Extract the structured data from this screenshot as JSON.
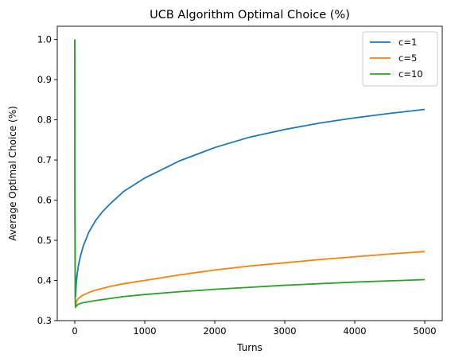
{
  "chart_data": {
    "type": "line",
    "title": "UCB Algorithm Optimal Choice (%)",
    "xlabel": "Turns",
    "ylabel": "Average Optimal Choice (%)",
    "xlim": [
      -250,
      5250
    ],
    "ylim": [
      0.3,
      1.033
    ],
    "xticks": [
      0,
      1000,
      2000,
      3000,
      4000,
      5000
    ],
    "xtick_labels": [
      "0",
      "1000",
      "2000",
      "3000",
      "4000",
      "5000"
    ],
    "yticks": [
      0.3,
      0.4,
      0.5,
      0.6,
      0.7,
      0.8,
      0.9,
      1.0
    ],
    "ytick_labels": [
      "0.3",
      "0.4",
      "0.5",
      "0.6",
      "0.7",
      "0.8",
      "0.9",
      "1.0"
    ],
    "grid": false,
    "legend_position": "top-right",
    "series": [
      {
        "name": "c=1",
        "color": "#1f77b4",
        "x": [
          1,
          3,
          5,
          8,
          12,
          20,
          30,
          50,
          80,
          120,
          200,
          300,
          400,
          500,
          700,
          1000,
          1500,
          2000,
          2500,
          3000,
          3500,
          4000,
          4500,
          5000
        ],
        "y": [
          1.0,
          0.6,
          0.5,
          0.38,
          0.36,
          0.39,
          0.41,
          0.435,
          0.46,
          0.485,
          0.52,
          0.55,
          0.572,
          0.59,
          0.622,
          0.655,
          0.698,
          0.731,
          0.757,
          0.776,
          0.792,
          0.805,
          0.816,
          0.826
        ]
      },
      {
        "name": "c=5",
        "color": "#ff7f0e",
        "x": [
          1,
          3,
          5,
          8,
          12,
          20,
          30,
          50,
          100,
          200,
          300,
          500,
          700,
          1000,
          1500,
          2000,
          2500,
          3000,
          3500,
          4000,
          4500,
          5000
        ],
        "y": [
          1.0,
          0.5,
          0.4,
          0.34,
          0.335,
          0.345,
          0.35,
          0.355,
          0.362,
          0.37,
          0.376,
          0.385,
          0.392,
          0.4,
          0.414,
          0.426,
          0.436,
          0.444,
          0.452,
          0.459,
          0.466,
          0.472
        ]
      },
      {
        "name": "c=10",
        "color": "#2ca02c",
        "x": [
          1,
          3,
          5,
          8,
          12,
          20,
          30,
          50,
          100,
          200,
          300,
          500,
          700,
          1000,
          1500,
          2000,
          2500,
          3000,
          3500,
          4000,
          4500,
          5000
        ],
        "y": [
          1.0,
          0.55,
          0.4,
          0.34,
          0.333,
          0.336,
          0.338,
          0.341,
          0.344,
          0.347,
          0.35,
          0.355,
          0.36,
          0.365,
          0.372,
          0.378,
          0.383,
          0.388,
          0.392,
          0.396,
          0.399,
          0.402
        ]
      }
    ]
  }
}
